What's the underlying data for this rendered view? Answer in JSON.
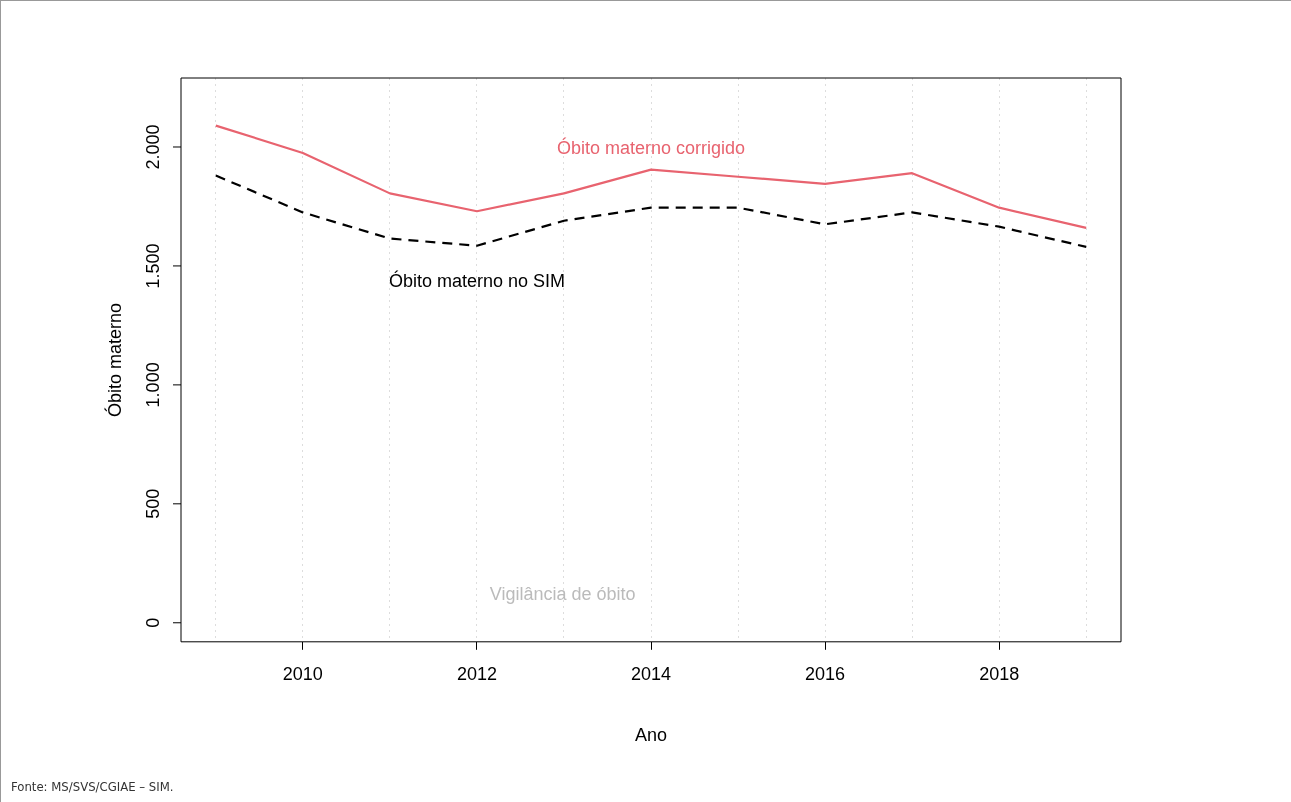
{
  "chart_data": {
    "type": "line",
    "xlabel": "Ano",
    "ylabel": "Óbito materno",
    "x": [
      2009,
      2010,
      2011,
      2012,
      2013,
      2014,
      2015,
      2016,
      2017,
      2018,
      2019
    ],
    "series": [
      {
        "name": "Óbito materno corrigido",
        "color": "#e8636f",
        "line_style": "solid",
        "values": [
          2090,
          1975,
          1805,
          1730,
          1805,
          1905,
          1875,
          1845,
          1890,
          1745,
          1660
        ]
      },
      {
        "name": "Óbito materno no SIM",
        "color": "#000000",
        "line_style": "dashed",
        "values": [
          1880,
          1725,
          1615,
          1585,
          1690,
          1745,
          1745,
          1675,
          1725,
          1665,
          1580
        ]
      }
    ],
    "xlim": [
      2008.6,
      2019.4
    ],
    "xticks": [
      {
        "value": 2009,
        "label": null
      },
      2010,
      {
        "value": 2011,
        "label": null
      },
      2012,
      {
        "value": 2013,
        "label": null
      },
      2014,
      {
        "value": 2015,
        "label": null
      },
      2016,
      {
        "value": 2017,
        "label": null
      },
      2018,
      {
        "value": 2019,
        "label": null
      }
    ],
    "ylim": [
      -80,
      2290
    ],
    "yticks": [
      0,
      500,
      {
        "value": 1000,
        "label": "1.000"
      },
      {
        "value": 1500,
        "label": "1.500"
      },
      {
        "value": 2000,
        "label": "2.000"
      }
    ],
    "grid": "x",
    "legend": false,
    "marker": "none",
    "annotations": [
      "Vigilância de óbito",
      "Fonte: MS/SVS/CGIAE – SIM."
    ]
  }
}
